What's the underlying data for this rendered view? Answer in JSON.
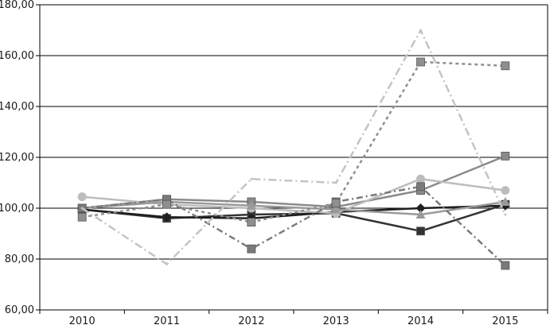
{
  "chart_data": {
    "type": "line",
    "title": "",
    "xlabel": "",
    "ylabel": "",
    "categories": [
      "2010",
      "2011",
      "2012",
      "2013",
      "2014",
      "2015"
    ],
    "y_tick_labels": [
      "60,00",
      "80,00",
      "100,00",
      "120,00",
      "140,00",
      "160,00",
      "180,00"
    ],
    "ylim": [
      60,
      180
    ],
    "y_tick_values": [
      60,
      80,
      100,
      120,
      140,
      160,
      180
    ],
    "grid": "horizontal",
    "legend": "none",
    "series": [
      {
        "values": [
          99.5,
          96.0,
          97.5,
          98.0,
          91.0,
          101.5
        ],
        "color": "#333333",
        "dash": "solid",
        "marker": "square"
      },
      {
        "values": [
          99.5,
          96.5,
          96.0,
          98.5,
          100.0,
          101.0
        ],
        "color": "#1f1f1f",
        "dash": "solid",
        "marker": "diamond"
      },
      {
        "values": [
          100.0,
          103.5,
          102.5,
          100.5,
          107.0,
          120.5
        ],
        "color": "#8a8a8a",
        "dash": "solid",
        "marker": "square"
      },
      {
        "values": [
          104.5,
          101.5,
          100.0,
          98.0,
          111.5,
          107.0
        ],
        "color": "#bdbdbd",
        "dash": "solid",
        "marker": "circle"
      },
      {
        "values": [
          100.0,
          102.5,
          101.0,
          99.5,
          97.5,
          102.5
        ],
        "color": "#9a9a9a",
        "dash": "solid",
        "marker": "triangle"
      },
      {
        "values": [
          100.0,
          103.5,
          84.0,
          102.5,
          108.5,
          77.5
        ],
        "color": "#7a7a7a",
        "dash": "8,4,2,4",
        "marker": "square"
      },
      {
        "values": [
          96.5,
          101.5,
          94.5,
          102.0,
          157.5,
          156.0
        ],
        "color": "#8f8f8f",
        "dash": "4,4",
        "marker": "square"
      },
      {
        "values": [
          100.0,
          78.0,
          111.5,
          110.0,
          170.0,
          97.5
        ],
        "color": "#c4c4c4",
        "dash": "10,4,2,4",
        "marker": "none"
      }
    ]
  }
}
